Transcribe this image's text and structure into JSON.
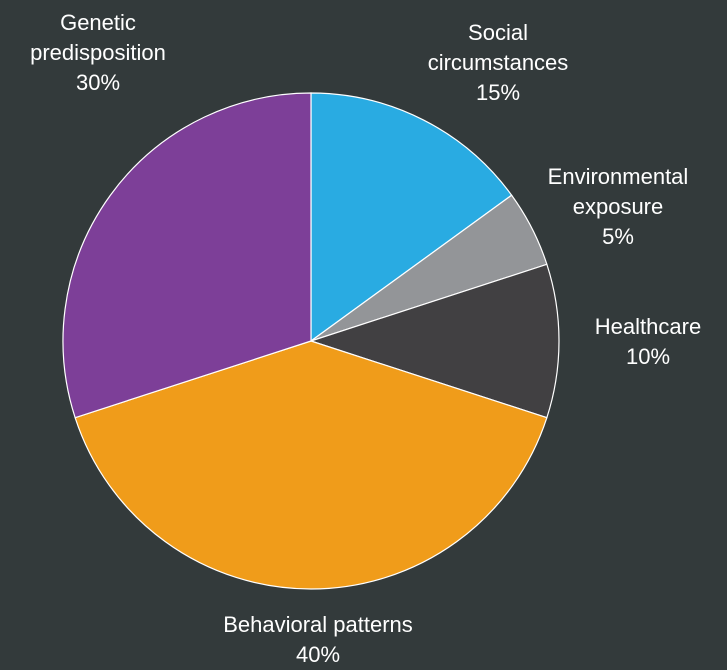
{
  "chart_data": {
    "type": "pie",
    "slices": [
      {
        "label": "Social circumstances",
        "label_lines": [
          "Social",
          "circumstances"
        ],
        "value": 15,
        "value_text": "15%",
        "color": "#29abe2"
      },
      {
        "label": "Environmental exposure",
        "label_lines": [
          "Environmental",
          "exposure"
        ],
        "value": 5,
        "value_text": "5%",
        "color": "#939598"
      },
      {
        "label": "Healthcare",
        "label_lines": [
          "Healthcare"
        ],
        "value": 10,
        "value_text": "10%",
        "color": "#414042"
      },
      {
        "label": "Behavioral patterns",
        "label_lines": [
          "Behavioral patterns"
        ],
        "value": 40,
        "value_text": "40%",
        "color": "#f09c1a"
      },
      {
        "label": "Genetic predisposition",
        "label_lines": [
          "Genetic",
          "predisposition"
        ],
        "value": 30,
        "value_text": "30%",
        "color": "#7d3f98"
      }
    ],
    "start_angle": "12 o'clock",
    "direction": "clockwise",
    "legend": "none"
  }
}
